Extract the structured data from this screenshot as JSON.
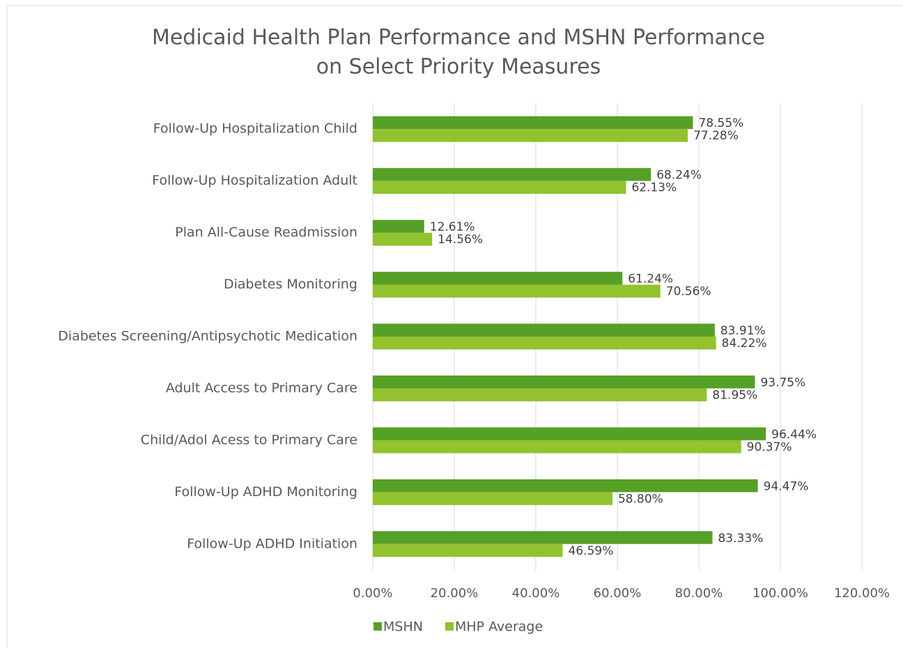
{
  "chart_data": {
    "type": "hbar",
    "title": [
      "Medicaid Health Plan Performance and MSHN Performance",
      "on Select Priority Measures"
    ],
    "categories": [
      "Follow-Up Hospitalization Child",
      "Follow-Up Hospitalization Adult",
      "Plan All-Cause Readmission",
      "Diabetes Monitoring",
      "Diabetes Screening/Antipsychotic Medication",
      "Adult Access to Primary Care",
      "Child/Adol Acess to Primary Care",
      "Follow-Up ADHD Monitoring",
      "Follow-Up ADHD Initiation"
    ],
    "series": [
      {
        "name": "MSHN",
        "color": "#57a027",
        "values": [
          78.55,
          68.24,
          12.61,
          61.24,
          83.91,
          93.75,
          96.44,
          94.47,
          83.33
        ],
        "value_labels": [
          "78.55%",
          "68.24%",
          "12.61%",
          "61.24%",
          "83.91%",
          "93.75%",
          "96.44%",
          "94.47%",
          "83.33%"
        ]
      },
      {
        "name": "MHP Average",
        "color": "#92c22d",
        "values": [
          77.28,
          62.13,
          14.56,
          70.56,
          84.22,
          81.95,
          90.37,
          58.8,
          46.59
        ],
        "value_labels": [
          "77.28%",
          "62.13%",
          "14.56%",
          "70.56%",
          "84.22%",
          "81.95%",
          "90.37%",
          "58.80%",
          "46.59%"
        ]
      }
    ],
    "xlim": [
      0,
      120
    ],
    "xticks": [
      {
        "value": 0,
        "label": "0.00%"
      },
      {
        "value": 20,
        "label": "20.00%"
      },
      {
        "value": 40,
        "label": "40.00%"
      },
      {
        "value": 60,
        "label": "60.00%"
      },
      {
        "value": 80,
        "label": "80.00%"
      },
      {
        "value": 100,
        "label": "100.00%"
      },
      {
        "value": 120,
        "label": "120.00%"
      }
    ],
    "grid": true,
    "legend": "bottom"
  }
}
